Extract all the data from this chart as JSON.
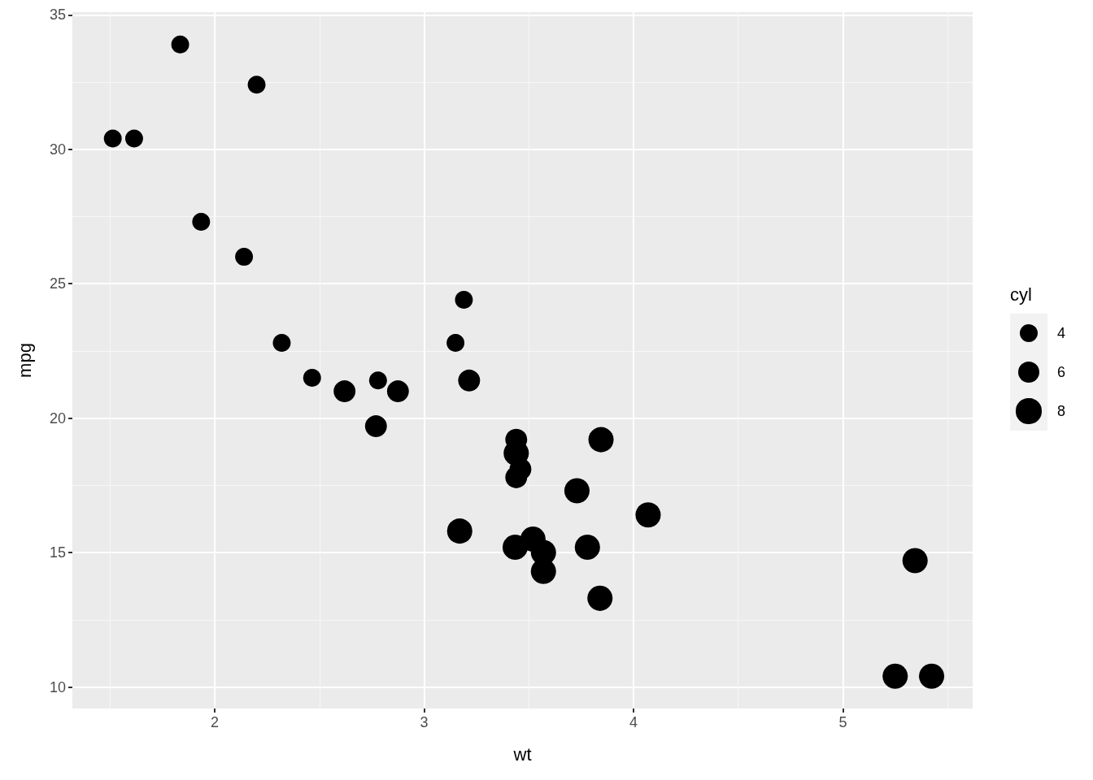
{
  "chart_data": {
    "type": "bubble",
    "xlabel": "wt",
    "ylabel": "mpg",
    "legend_title": "cyl",
    "grid": true,
    "marker": "circle",
    "xlim": [
      1.32,
      5.62
    ],
    "xticks": [
      2,
      3,
      4,
      5
    ],
    "ylim": [
      9.2,
      35.1
    ],
    "yticks": [
      10,
      15,
      20,
      25,
      30,
      35
    ],
    "size_legend": [
      4,
      6,
      8
    ],
    "series": [
      {
        "color": "#000000",
        "x": [
          2.62,
          2.875,
          2.32,
          3.215,
          3.44,
          3.46,
          3.57,
          3.19,
          3.15,
          3.44,
          3.44,
          4.07,
          3.73,
          3.78,
          5.25,
          5.424,
          5.345,
          2.2,
          1.615,
          1.835,
          2.465,
          3.52,
          3.435,
          3.84,
          3.845,
          1.935,
          2.14,
          1.513,
          3.17,
          2.77,
          3.57,
          2.78
        ],
        "values": [
          21.0,
          21.0,
          22.8,
          21.4,
          18.7,
          18.1,
          14.3,
          24.4,
          22.8,
          19.2,
          17.8,
          16.4,
          17.3,
          15.2,
          10.4,
          10.4,
          14.7,
          32.4,
          30.4,
          33.9,
          21.5,
          15.5,
          15.2,
          13.3,
          19.2,
          27.3,
          26.0,
          30.4,
          15.8,
          19.7,
          15.0,
          21.4
        ],
        "sizes": [
          6,
          6,
          4,
          6,
          8,
          6,
          8,
          4,
          4,
          6,
          6,
          8,
          8,
          8,
          8,
          8,
          8,
          4,
          4,
          4,
          4,
          8,
          8,
          8,
          8,
          4,
          4,
          4,
          8,
          6,
          8,
          4
        ]
      }
    ]
  }
}
